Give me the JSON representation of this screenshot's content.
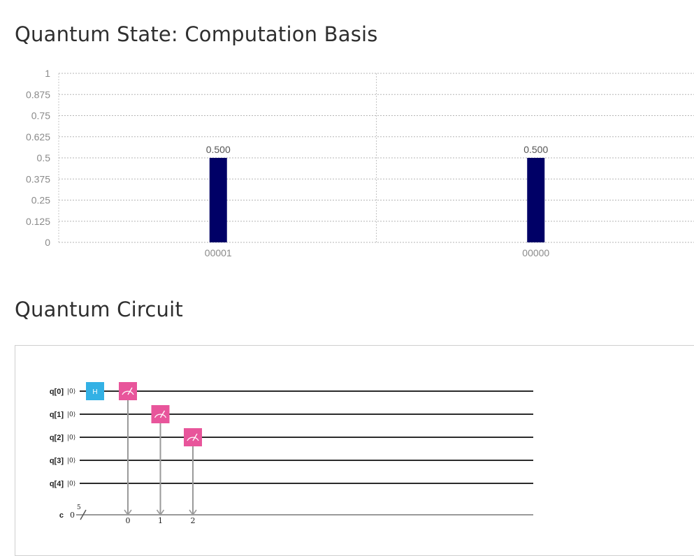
{
  "state_section": {
    "title": "Quantum State: Computation Basis"
  },
  "chart_data": {
    "type": "bar",
    "categories": [
      "00001",
      "00000"
    ],
    "values": [
      0.5,
      0.5
    ],
    "data_labels": [
      "0.500",
      "0.500"
    ],
    "ylim": [
      0,
      1
    ],
    "yticks": [
      "0",
      "0.125",
      "0.25",
      "0.375",
      "0.5",
      "0.625",
      "0.75",
      "0.875",
      "1"
    ],
    "grid": true,
    "bar_color": "#000066"
  },
  "circuit_section": {
    "title": "Quantum Circuit",
    "qubits": [
      {
        "label": "q[0]",
        "init": "|0⟩"
      },
      {
        "label": "q[1]",
        "init": "|0⟩"
      },
      {
        "label": "q[2]",
        "init": "|0⟩"
      },
      {
        "label": "q[3]",
        "init": "|0⟩"
      },
      {
        "label": "q[4]",
        "init": "|0⟩"
      }
    ],
    "classical": {
      "label": "c",
      "init": "0",
      "width": "5"
    },
    "gates": [
      {
        "type": "H",
        "qubit": 0,
        "label": "H",
        "color": "#33b1e5"
      },
      {
        "type": "measure",
        "qubit": 0,
        "cbit": "0",
        "color": "#e8559b"
      },
      {
        "type": "measure",
        "qubit": 1,
        "cbit": "1",
        "color": "#e8559b"
      },
      {
        "type": "measure",
        "qubit": 2,
        "cbit": "2",
        "color": "#e8559b"
      }
    ]
  }
}
